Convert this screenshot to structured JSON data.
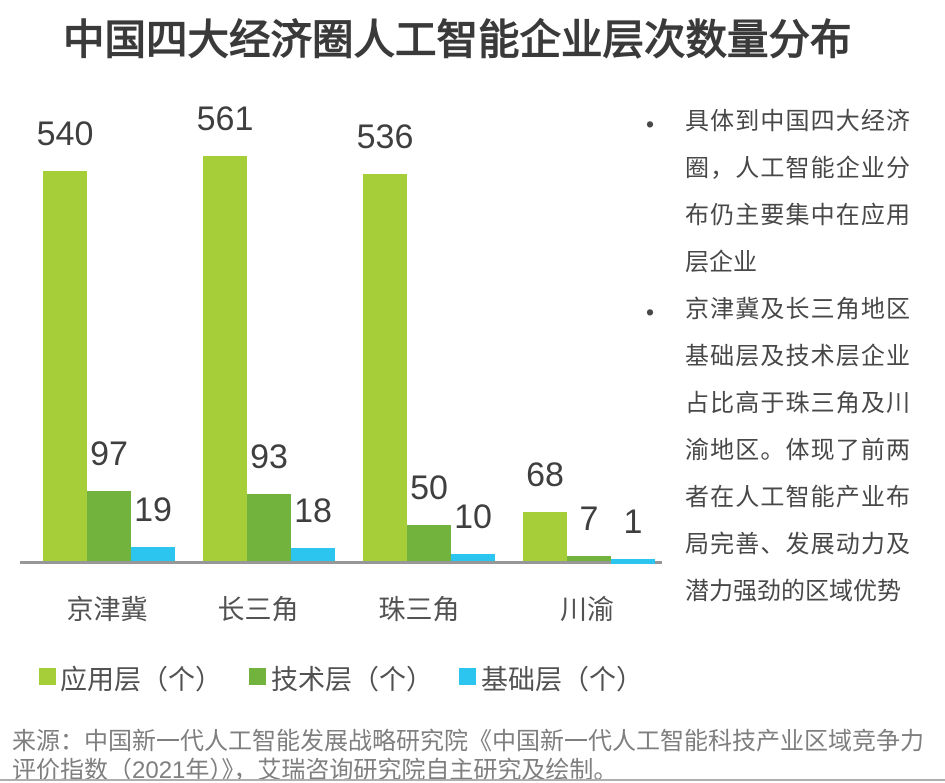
{
  "title": "中国四大经济圈人工智能企业层次数量分布",
  "chart_data": {
    "type": "bar",
    "title": "中国四大经济圈人工智能企业层次数量分布",
    "categories": [
      "京津冀",
      "长三角",
      "珠三角",
      "川渝"
    ],
    "series": [
      {
        "name": "应用层（个）",
        "color": "#a6ce38",
        "values": [
          540,
          561,
          536,
          68
        ]
      },
      {
        "name": "技术层（个）",
        "color": "#71b33c",
        "values": [
          97,
          93,
          50,
          7
        ]
      },
      {
        "name": "基础层（个）",
        "color": "#2bc5f0",
        "values": [
          19,
          18,
          10,
          1
        ]
      }
    ],
    "ylim": [
      0,
      561
    ],
    "value_labels": true,
    "legend_position": "bottom",
    "grid": false
  },
  "notes": [
    {
      "text": "具体到中国四大经济圈，人工智能企业分布仍主要集中在应用层企业"
    },
    {
      "text": "京津冀及长三角地区基础层及技术层企业占比高于珠三角及川渝地区。体现了前两者在人工智能产业布局完善、发展动力及潜力强劲的区域优势"
    }
  ],
  "source": {
    "lines": [
      "来源：中国新一代人工智能发展战略研究院《中国新一代人工智能科技产业区域竞争力",
      "评价指数（2021年）》，艾瑞咨询研究院自主研究及绘制。"
    ]
  },
  "bullet_char": "•",
  "colors": {
    "title": "#3a3a3a",
    "value_label": "#3f3f3f",
    "category_label": "#525252",
    "note_text": "#484848",
    "source_text": "#7f7f7f",
    "axis_line": "#979797"
  }
}
